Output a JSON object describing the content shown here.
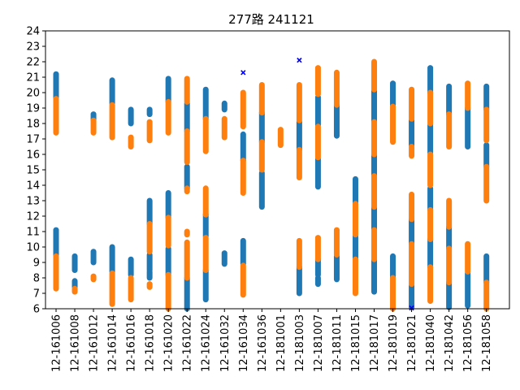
{
  "chart_data": {
    "type": "scatter",
    "title": "277路  241121",
    "xlabel": "",
    "ylabel": "",
    "ylim": [
      6,
      24
    ],
    "yticks": [
      6,
      7,
      8,
      9,
      10,
      11,
      12,
      13,
      14,
      15,
      16,
      17,
      18,
      19,
      20,
      21,
      22,
      23,
      24
    ],
    "grid": false,
    "legend": "none",
    "colors": {
      "blue": "#1f77b4",
      "orange": "#ff7f0e",
      "marker": "#0000ff"
    },
    "categories": [
      "12-161006",
      "12-161008",
      "12-161012",
      "12-161014",
      "12-161016",
      "12-161018",
      "12-161020",
      "12-161022",
      "12-161024",
      "12-161032",
      "12-161034",
      "12-161036",
      "12-181001",
      "12-181003",
      "12-181007",
      "12-181011",
      "12-181015",
      "12-181017",
      "12-181019",
      "12-181021",
      "12-181040",
      "12-181042",
      "12-181056",
      "12-181058"
    ],
    "series": [
      {
        "color": "blue",
        "segments": [
          {
            "category": "12-161006",
            "from": 19.6,
            "to": 21.2
          },
          {
            "category": "12-161006",
            "from": 9.4,
            "to": 11.1
          },
          {
            "category": "12-161008",
            "from": 8.5,
            "to": 9.4
          },
          {
            "category": "12-161008",
            "from": 7.4,
            "to": 7.8
          },
          {
            "category": "12-161012",
            "from": 18.2,
            "to": 18.6
          },
          {
            "category": "12-161012",
            "from": 9.0,
            "to": 9.7
          },
          {
            "category": "12-161014",
            "from": 19.3,
            "to": 20.8
          },
          {
            "category": "12-161014",
            "from": 8.4,
            "to": 10.0
          },
          {
            "category": "12-161016",
            "from": 18.0,
            "to": 18.9
          },
          {
            "category": "12-161016",
            "from": 8.2,
            "to": 9.2
          },
          {
            "category": "12-161018",
            "from": 18.6,
            "to": 18.9
          },
          {
            "category": "12-161018",
            "from": 11.5,
            "to": 13.0
          },
          {
            "category": "12-161018",
            "from": 8.5,
            "to": 9.5
          },
          {
            "category": "12-161018",
            "from": 8.0,
            "to": 8.4
          },
          {
            "category": "12-161020",
            "from": 19.4,
            "to": 20.9
          },
          {
            "category": "12-161020",
            "from": 11.9,
            "to": 13.5
          },
          {
            "category": "12-161020",
            "from": 8.2,
            "to": 9.9
          },
          {
            "category": "12-161022",
            "from": 17.5,
            "to": 19.3
          },
          {
            "category": "12-161022",
            "from": 13.8,
            "to": 15.2
          },
          {
            "category": "12-161022",
            "from": 6.0,
            "to": 8.0
          },
          {
            "category": "12-161024",
            "from": 18.3,
            "to": 20.2
          },
          {
            "category": "12-161024",
            "from": 10.7,
            "to": 12.1
          },
          {
            "category": "12-161024",
            "from": 6.6,
            "to": 8.5
          },
          {
            "category": "12-161032",
            "from": 18.9,
            "to": 19.3
          },
          {
            "category": "12-161032",
            "from": 8.9,
            "to": 9.6
          },
          {
            "category": "12-161034",
            "from": 15.6,
            "to": 17.3
          },
          {
            "category": "12-161034",
            "from": 8.9,
            "to": 10.4
          },
          {
            "category": "12-161036",
            "from": 16.8,
            "to": 18.7
          },
          {
            "category": "12-161036",
            "from": 12.6,
            "to": 14.8
          },
          {
            "category": "12-181003",
            "from": 16.3,
            "to": 18.1
          },
          {
            "category": "12-181003",
            "from": 7.0,
            "to": 8.7
          },
          {
            "category": "12-181007",
            "from": 17.9,
            "to": 19.7
          },
          {
            "category": "12-181007",
            "from": 13.9,
            "to": 15.7
          },
          {
            "category": "12-181007",
            "from": 8.2,
            "to": 9.2
          },
          {
            "category": "12-181007",
            "from": 7.6,
            "to": 8.0
          },
          {
            "category": "12-181011",
            "from": 17.2,
            "to": 19.2
          },
          {
            "category": "12-181011",
            "from": 7.9,
            "to": 9.4
          },
          {
            "category": "12-181015",
            "from": 12.8,
            "to": 14.4
          },
          {
            "category": "12-181015",
            "from": 9.2,
            "to": 10.7
          },
          {
            "category": "12-181017",
            "from": 18.1,
            "to": 20.1
          },
          {
            "category": "12-181017",
            "from": 14.6,
            "to": 16.0
          },
          {
            "category": "12-181017",
            "from": 11.1,
            "to": 12.6
          },
          {
            "category": "12-181017",
            "from": 7.1,
            "to": 9.2
          },
          {
            "category": "12-181019",
            "from": 19.2,
            "to": 20.6
          },
          {
            "category": "12-181019",
            "from": 8.0,
            "to": 9.4
          },
          {
            "category": "12-181021",
            "from": 16.6,
            "to": 18.2
          },
          {
            "category": "12-181021",
            "from": 10.2,
            "to": 11.8
          },
          {
            "category": "12-181021",
            "from": 6.1,
            "to": 7.5
          },
          {
            "category": "12-181040",
            "from": 20.0,
            "to": 21.6
          },
          {
            "category": "12-181040",
            "from": 16.1,
            "to": 17.9
          },
          {
            "category": "12-181040",
            "from": 12.4,
            "to": 13.8
          },
          {
            "category": "12-181040",
            "from": 8.7,
            "to": 10.5
          },
          {
            "category": "12-181042",
            "from": 18.6,
            "to": 20.4
          },
          {
            "category": "12-181042",
            "from": 9.9,
            "to": 11.3
          },
          {
            "category": "12-181042",
            "from": 6.1,
            "to": 7.7
          },
          {
            "category": "12-181056",
            "from": 16.5,
            "to": 19.0
          },
          {
            "category": "12-181056",
            "from": 6.2,
            "to": 8.3
          },
          {
            "category": "12-181058",
            "from": 18.9,
            "to": 20.4
          },
          {
            "category": "12-181058",
            "from": 15.2,
            "to": 16.6
          },
          {
            "category": "12-181058",
            "from": 7.7,
            "to": 9.4
          }
        ]
      },
      {
        "color": "orange",
        "segments": [
          {
            "category": "12-161006",
            "from": 17.4,
            "to": 19.6
          },
          {
            "category": "12-161006",
            "from": 7.3,
            "to": 9.4
          },
          {
            "category": "12-161008",
            "from": 7.1,
            "to": 7.3
          },
          {
            "category": "12-161012",
            "from": 17.4,
            "to": 18.2
          },
          {
            "category": "12-161012",
            "from": 7.9,
            "to": 8.1
          },
          {
            "category": "12-161014",
            "from": 17.1,
            "to": 19.2
          },
          {
            "category": "12-161014",
            "from": 6.3,
            "to": 8.3
          },
          {
            "category": "12-161016",
            "from": 16.5,
            "to": 17.1
          },
          {
            "category": "12-161016",
            "from": 6.6,
            "to": 8.0
          },
          {
            "category": "12-161018",
            "from": 16.9,
            "to": 18.1
          },
          {
            "category": "12-161018",
            "from": 9.7,
            "to": 11.5
          },
          {
            "category": "12-161018",
            "from": 7.4,
            "to": 7.6
          },
          {
            "category": "12-161020",
            "from": 17.4,
            "to": 19.4
          },
          {
            "category": "12-161020",
            "from": 10.1,
            "to": 11.9
          },
          {
            "category": "12-161020",
            "from": 6.0,
            "to": 8.2
          },
          {
            "category": "12-161022",
            "from": 19.4,
            "to": 20.9
          },
          {
            "category": "12-161022",
            "from": 15.5,
            "to": 17.5
          },
          {
            "category": "12-161022",
            "from": 13.6,
            "to": 13.8
          },
          {
            "category": "12-161022",
            "from": 10.8,
            "to": 11.0
          },
          {
            "category": "12-161022",
            "from": 8.0,
            "to": 10.3
          },
          {
            "category": "12-161024",
            "from": 16.2,
            "to": 18.3
          },
          {
            "category": "12-161024",
            "from": 12.1,
            "to": 13.8
          },
          {
            "category": "12-161024",
            "from": 8.5,
            "to": 10.6
          },
          {
            "category": "12-161032",
            "from": 17.1,
            "to": 18.3
          },
          {
            "category": "12-161034",
            "from": 17.8,
            "to": 20.0
          },
          {
            "category": "12-161034",
            "from": 13.5,
            "to": 15.6
          },
          {
            "category": "12-161034",
            "from": 6.9,
            "to": 8.8
          },
          {
            "category": "12-161036",
            "from": 18.7,
            "to": 20.5
          },
          {
            "category": "12-161036",
            "from": 15.0,
            "to": 16.8
          },
          {
            "category": "12-181001",
            "from": 16.6,
            "to": 17.6
          },
          {
            "category": "12-181003",
            "from": 18.2,
            "to": 20.5
          },
          {
            "category": "12-181003",
            "from": 14.5,
            "to": 16.3
          },
          {
            "category": "12-181003",
            "from": 8.7,
            "to": 10.4
          },
          {
            "category": "12-181007",
            "from": 19.9,
            "to": 21.6
          },
          {
            "category": "12-181007",
            "from": 15.8,
            "to": 17.8
          },
          {
            "category": "12-181007",
            "from": 9.2,
            "to": 10.6
          },
          {
            "category": "12-181011",
            "from": 19.2,
            "to": 21.3
          },
          {
            "category": "12-181011",
            "from": 9.5,
            "to": 11.1
          },
          {
            "category": "12-181015",
            "from": 10.8,
            "to": 12.8
          },
          {
            "category": "12-181015",
            "from": 7.0,
            "to": 9.2
          },
          {
            "category": "12-181017",
            "from": 20.2,
            "to": 22.0
          },
          {
            "category": "12-181017",
            "from": 16.0,
            "to": 18.1
          },
          {
            "category": "12-181017",
            "from": 12.6,
            "to": 14.6
          },
          {
            "category": "12-181017",
            "from": 9.2,
            "to": 11.1
          },
          {
            "category": "12-181019",
            "from": 16.8,
            "to": 19.1
          },
          {
            "category": "12-181019",
            "from": 6.0,
            "to": 8.0
          },
          {
            "category": "12-181021",
            "from": 18.3,
            "to": 20.2
          },
          {
            "category": "12-181021",
            "from": 15.9,
            "to": 16.5
          },
          {
            "category": "12-181021",
            "from": 11.8,
            "to": 13.4
          },
          {
            "category": "12-181021",
            "from": 7.6,
            "to": 10.2
          },
          {
            "category": "12-181040",
            "from": 18.0,
            "to": 20.0
          },
          {
            "category": "12-181040",
            "from": 14.0,
            "to": 16.0
          },
          {
            "category": "12-181040",
            "from": 10.5,
            "to": 12.4
          },
          {
            "category": "12-181040",
            "from": 6.5,
            "to": 8.7
          },
          {
            "category": "12-181042",
            "from": 16.5,
            "to": 18.6
          },
          {
            "category": "12-181042",
            "from": 11.3,
            "to": 13.0
          },
          {
            "category": "12-181042",
            "from": 7.7,
            "to": 9.9
          },
          {
            "category": "12-181056",
            "from": 19.0,
            "to": 20.6
          },
          {
            "category": "12-181056",
            "from": 8.4,
            "to": 10.2
          },
          {
            "category": "12-181058",
            "from": 16.9,
            "to": 18.9
          },
          {
            "category": "12-181058",
            "from": 13.0,
            "to": 15.2
          },
          {
            "category": "12-181058",
            "from": 6.0,
            "to": 7.7
          }
        ]
      }
    ],
    "markers": [
      {
        "category": "12-161034",
        "y": 21.3,
        "symbol": "x",
        "color": "marker"
      },
      {
        "category": "12-181003",
        "y": 22.1,
        "symbol": "x",
        "color": "marker"
      },
      {
        "category": "12-181021",
        "y": 6.05,
        "symbol": "x",
        "color": "marker"
      }
    ]
  }
}
